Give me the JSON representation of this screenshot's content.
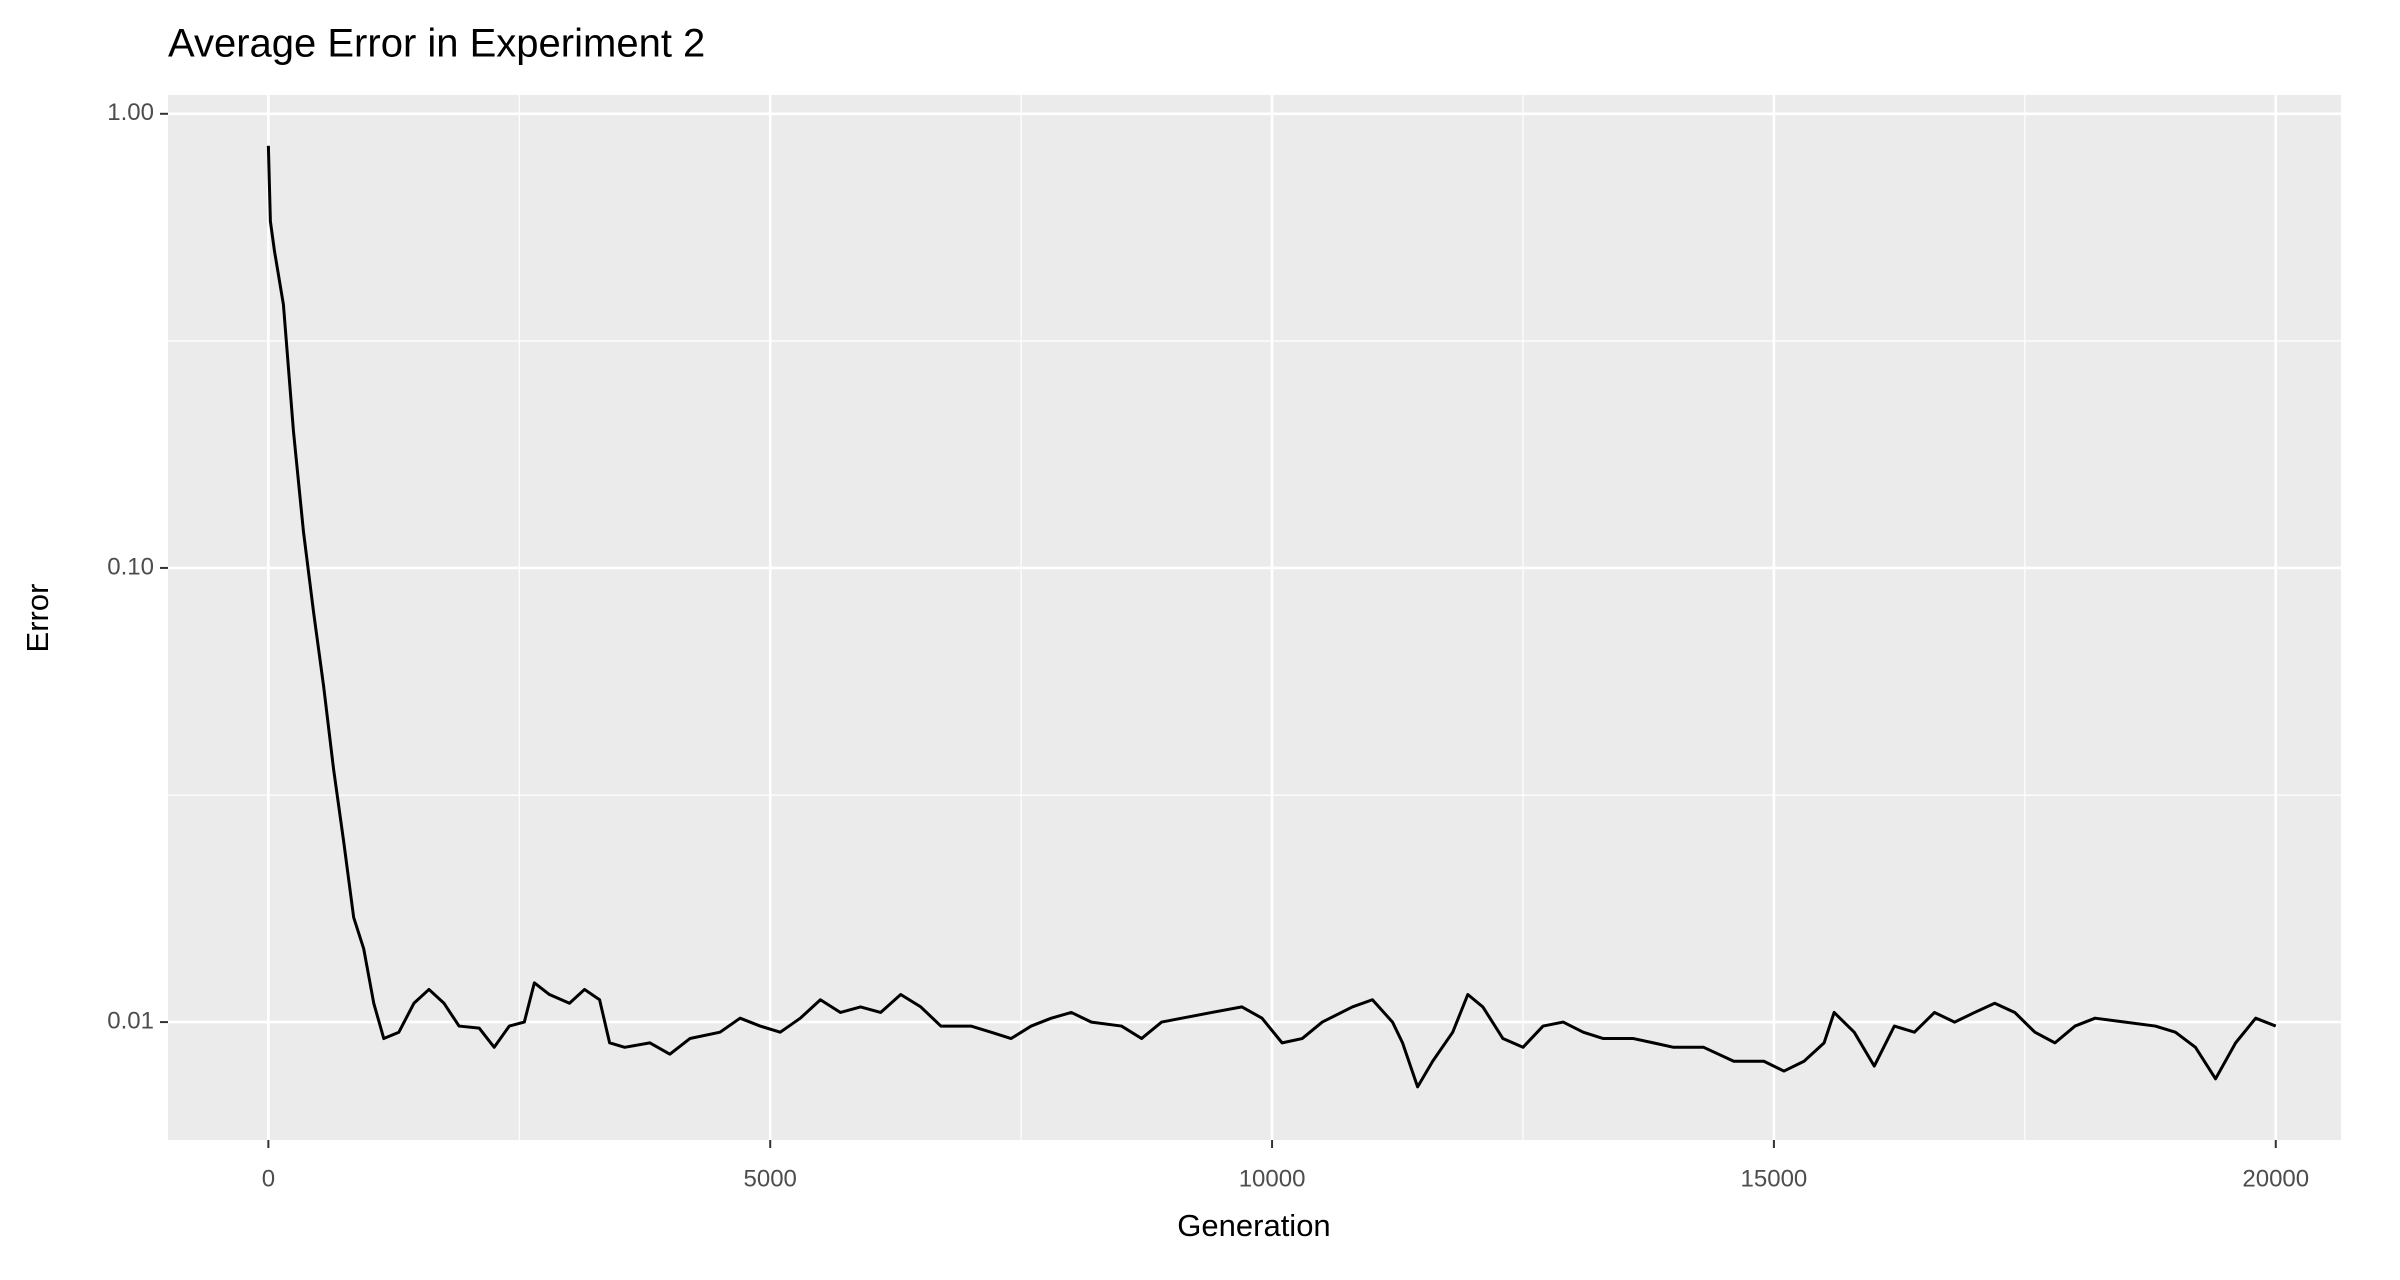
{
  "chart_data": {
    "type": "line",
    "title": "Average Error in Experiment 2",
    "x_label": "Generation",
    "y_label": "Error",
    "x": [
      0,
      20,
      60,
      150,
      250,
      350,
      450,
      550,
      650,
      750,
      850,
      950,
      1050,
      1150,
      1300,
      1450,
      1600,
      1750,
      1900,
      2100,
      2250,
      2400,
      2550,
      2650,
      2800,
      3000,
      3150,
      3300,
      3400,
      3550,
      3800,
      4000,
      4200,
      4500,
      4700,
      4900,
      5100,
      5300,
      5500,
      5700,
      5900,
      6100,
      6300,
      6500,
      6700,
      7000,
      7200,
      7400,
      7600,
      7800,
      8000,
      8200,
      8500,
      8700,
      8900,
      9100,
      9400,
      9700,
      9900,
      10100,
      10300,
      10500,
      10800,
      11000,
      11200,
      11300,
      11450,
      11600,
      11800,
      11950,
      12100,
      12300,
      12500,
      12700,
      12900,
      13100,
      13300,
      13600,
      13800,
      14000,
      14300,
      14600,
      14900,
      15100,
      15300,
      15500,
      15600,
      15800,
      16000,
      16200,
      16400,
      16600,
      16800,
      17000,
      17200,
      17400,
      17600,
      17800,
      18000,
      18200,
      18500,
      18800,
      19000,
      19200,
      19400,
      19600,
      19800,
      20000
    ],
    "values": [
      0.85,
      0.58,
      0.5,
      0.38,
      0.2,
      0.12,
      0.08,
      0.055,
      0.036,
      0.025,
      0.017,
      0.0145,
      0.011,
      0.0092,
      0.0095,
      0.011,
      0.0118,
      0.011,
      0.0098,
      0.0097,
      0.0088,
      0.0098,
      0.01,
      0.0122,
      0.0115,
      0.011,
      0.0118,
      0.0112,
      0.009,
      0.0088,
      0.009,
      0.0085,
      0.0092,
      0.0095,
      0.0102,
      0.0098,
      0.0095,
      0.0102,
      0.0112,
      0.0105,
      0.0108,
      0.0105,
      0.0115,
      0.0108,
      0.0098,
      0.0098,
      0.0095,
      0.0092,
      0.0098,
      0.0102,
      0.0105,
      0.01,
      0.0098,
      0.0092,
      0.01,
      0.0102,
      0.0105,
      0.0108,
      0.0102,
      0.009,
      0.0092,
      0.01,
      0.0108,
      0.0112,
      0.01,
      0.009,
      0.0072,
      0.0082,
      0.0095,
      0.0115,
      0.0108,
      0.0092,
      0.0088,
      0.0098,
      0.01,
      0.0095,
      0.0092,
      0.0092,
      0.009,
      0.0088,
      0.0088,
      0.0082,
      0.0082,
      0.0078,
      0.0082,
      0.009,
      0.0105,
      0.0095,
      0.008,
      0.0098,
      0.0095,
      0.0105,
      0.01,
      0.0105,
      0.011,
      0.0105,
      0.0095,
      0.009,
      0.0098,
      0.0102,
      0.01,
      0.0098,
      0.0095,
      0.0088,
      0.0075,
      0.009,
      0.0102,
      0.0098
    ],
    "color": "#000000",
    "xlim": [
      -1000,
      20650
    ],
    "xticks": [
      0,
      5000,
      10000,
      15000,
      20000
    ],
    "x_minor_ticks": [
      2500,
      7500,
      12500,
      17500
    ],
    "ylim": [
      0.0055,
      1.1
    ],
    "y_log": true,
    "yticks": [
      {
        "value": 0.01,
        "label": "0.01"
      },
      {
        "value": 0.1,
        "label": "0.10"
      },
      {
        "value": 1,
        "label": "1.00"
      }
    ],
    "y_minor_ticks": [
      0.0316,
      0.316
    ],
    "grid": true
  }
}
